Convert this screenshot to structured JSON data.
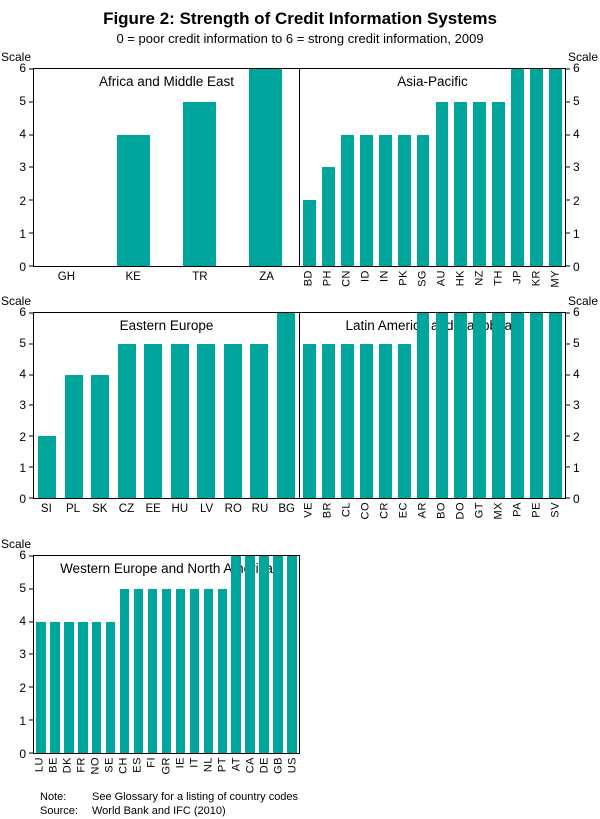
{
  "figure": {
    "title": "Figure 2: Strength of Credit Information Systems",
    "subtitle": "0 = poor credit information to 6 = strong credit information, 2009",
    "scale_label": "Scale",
    "bar_color": "#00a69c",
    "yticks": [
      0,
      1,
      2,
      3,
      4,
      5,
      6
    ],
    "notes": {
      "note_label": "Note:",
      "note_text": "See Glossary for a listing of country codes",
      "source_label": "Source:",
      "source_text": "World Bank and IFC (2010)"
    }
  },
  "chart_data": [
    {
      "type": "bar",
      "title": "Africa and Middle East",
      "categories": [
        "GH",
        "KE",
        "TR",
        "ZA"
      ],
      "values": [
        0,
        4,
        5,
        6
      ],
      "ylim": [
        0,
        6
      ],
      "label_orientation": "horizontal",
      "axis_side": "left"
    },
    {
      "type": "bar",
      "title": "Asia-Pacific",
      "categories": [
        "BD",
        "PH",
        "CN",
        "ID",
        "IN",
        "PK",
        "SG",
        "AU",
        "HK",
        "NZ",
        "TH",
        "JP",
        "KR",
        "MY"
      ],
      "values": [
        2,
        3,
        4,
        4,
        4,
        4,
        4,
        5,
        5,
        5,
        5,
        6,
        6,
        6
      ],
      "ylim": [
        0,
        6
      ],
      "label_orientation": "vertical",
      "axis_side": "right"
    },
    {
      "type": "bar",
      "title": "Eastern Europe",
      "categories": [
        "SI",
        "PL",
        "SK",
        "CZ",
        "EE",
        "HU",
        "LV",
        "RO",
        "RU",
        "BG"
      ],
      "values": [
        2,
        4,
        4,
        5,
        5,
        5,
        5,
        5,
        5,
        6
      ],
      "ylim": [
        0,
        6
      ],
      "label_orientation": "horizontal",
      "axis_side": "left"
    },
    {
      "type": "bar",
      "title": "Latin America and Caribbean",
      "categories": [
        "VE",
        "BR",
        "CL",
        "CO",
        "CR",
        "EC",
        "AR",
        "BO",
        "DO",
        "GT",
        "MX",
        "PA",
        "PE",
        "SV"
      ],
      "values": [
        5,
        5,
        5,
        5,
        5,
        5,
        6,
        6,
        6,
        6,
        6,
        6,
        6,
        6
      ],
      "ylim": [
        0,
        6
      ],
      "label_orientation": "vertical",
      "axis_side": "right"
    },
    {
      "type": "bar",
      "title": "Western Europe and North America",
      "categories": [
        "LU",
        "BE",
        "DK",
        "FR",
        "NO",
        "SE",
        "CH",
        "ES",
        "FI",
        "GR",
        "IE",
        "IT",
        "NL",
        "PT",
        "AT",
        "CA",
        "DE",
        "GB",
        "US"
      ],
      "values": [
        4,
        4,
        4,
        4,
        4,
        4,
        5,
        5,
        5,
        5,
        5,
        5,
        5,
        5,
        6,
        6,
        6,
        6,
        6
      ],
      "ylim": [
        0,
        6
      ],
      "label_orientation": "vertical",
      "axis_side": "left"
    }
  ]
}
